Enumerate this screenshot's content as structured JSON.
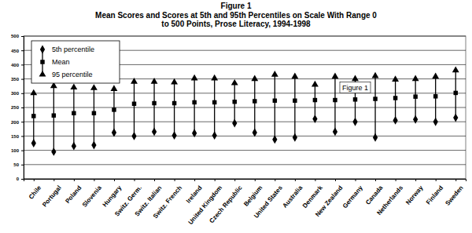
{
  "chart_data": {
    "type": "range",
    "title": "Figure 1",
    "subtitle": [
      "Mean Scores and Scores at 5th and 95th Percentiles on Scale With Range 0",
      "to 500 Points, Prose Literacy, 1994-1998"
    ],
    "categories": [
      "Chile",
      "Portugal",
      "Poland",
      "Slovenia",
      "Hungary",
      "Switz. Germ.",
      "Switz. Italian",
      "Switz. French",
      "Ireland",
      "United Kingdom",
      "Czech Republic",
      "Belgium",
      "United States",
      "Australia",
      "Denmark",
      "New Zealand",
      "Germany",
      "Canada",
      "Netherlands",
      "Norway",
      "Finland",
      "Sweden"
    ],
    "series": [
      {
        "name": "5th percentile",
        "color": "#000000",
        "marker": "diamond",
        "values": [
          125,
          95,
          115,
          118,
          162,
          150,
          165,
          152,
          160,
          152,
          195,
          162,
          138,
          145,
          210,
          165,
          200,
          145,
          205,
          208,
          200,
          214
        ]
      },
      {
        "name": "Mean",
        "color": "#000000",
        "marker": "square",
        "values": [
          220,
          222,
          230,
          230,
          242,
          263,
          265,
          265,
          268,
          268,
          270,
          272,
          274,
          274,
          276,
          276,
          278,
          280,
          283,
          288,
          289,
          301
        ]
      },
      {
        "name": "95 percentile",
        "color": "#000000",
        "marker": "triangle",
        "values": [
          300,
          325,
          320,
          318,
          315,
          340,
          340,
          338,
          352,
          352,
          335,
          350,
          365,
          358,
          330,
          358,
          350,
          360,
          348,
          350,
          358,
          380
        ]
      }
    ],
    "ylim": [
      0,
      500
    ],
    "yticks": [
      0,
      50,
      100,
      150,
      200,
      250,
      300,
      350,
      400,
      450,
      500
    ],
    "grid": true,
    "legend": "top-left",
    "annotations": [
      {
        "text": "Figure 1",
        "category": "Germany",
        "y": 320
      }
    ]
  }
}
